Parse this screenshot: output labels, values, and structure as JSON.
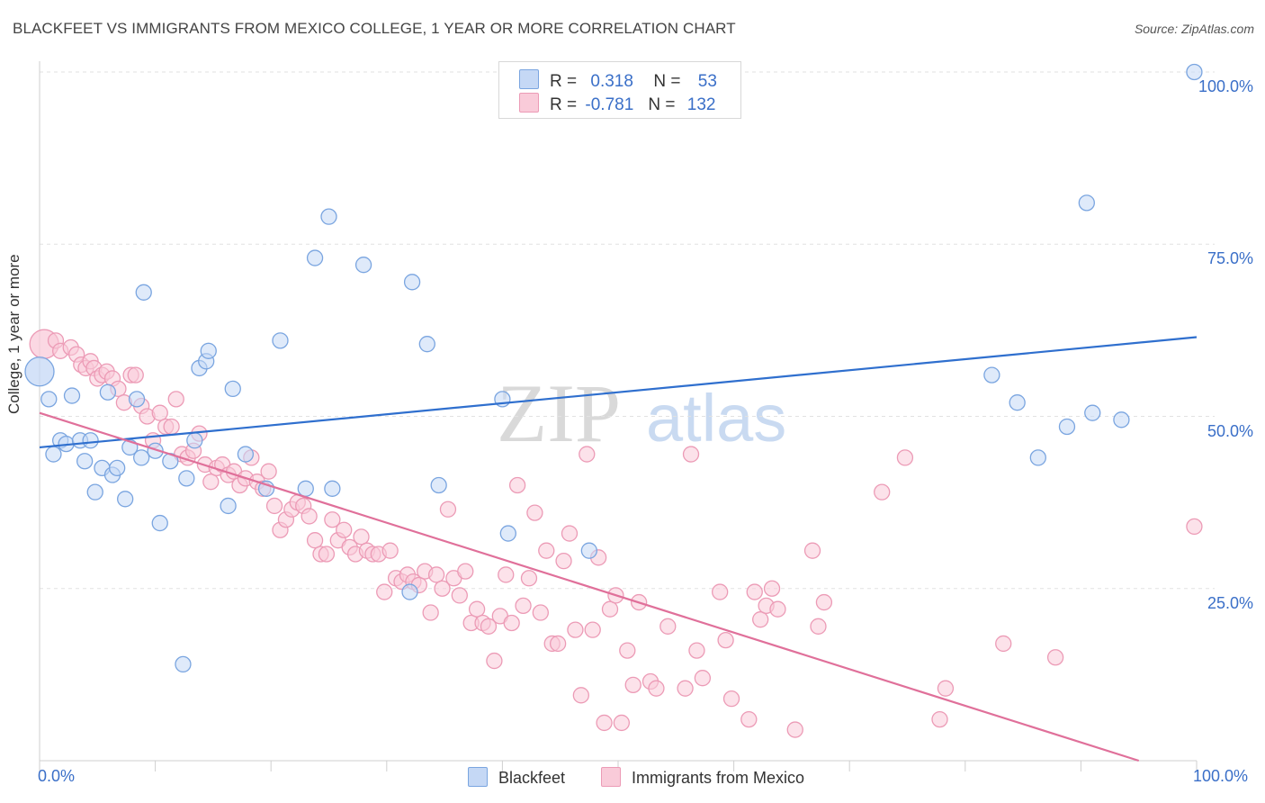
{
  "title": "BLACKFEET VS IMMIGRANTS FROM MEXICO COLLEGE, 1 YEAR OR MORE CORRELATION CHART",
  "source": "Source: ZipAtlas.com",
  "watermark": {
    "zip": "ZIP",
    "atlas": "atlas"
  },
  "legend": {
    "rows": [
      {
        "r_label": "R =",
        "r_value": "0.318",
        "n_label": "N =",
        "n_value": "53"
      },
      {
        "r_label": "R =",
        "r_value": "-0.781",
        "n_label": "N =",
        "n_value": "132"
      }
    ]
  },
  "colors": {
    "blackfeet_fill": "#c5d8f5",
    "blackfeet_stroke": "#7aa5e0",
    "blackfeet_line": "#2f6fce",
    "mexico_fill": "#f9cbd9",
    "mexico_stroke": "#ec9bb6",
    "mexico_line": "#e0709a",
    "tick_text": "#3a6fc8",
    "grid": "#e2e2e2"
  },
  "chart_data": {
    "type": "scatter",
    "xlabel": "",
    "ylabel": "College, 1 year or more",
    "xlim": [
      0,
      100
    ],
    "ylim": [
      0,
      100
    ],
    "x_tick_labels": [
      "0.0%",
      "100.0%"
    ],
    "y_tick_labels": [
      "25.0%",
      "50.0%",
      "75.0%",
      "100.0%"
    ],
    "y_ticks": [
      25,
      50,
      75,
      100
    ],
    "grid": "horizontal dashed",
    "legend_placement": "top-center",
    "series": [
      {
        "name": "Blackfeet",
        "trend": {
          "x": [
            0,
            100
          ],
          "y": [
            45.5,
            61.5
          ]
        },
        "points": [
          {
            "x": 0.0,
            "y": 56.5,
            "big": true
          },
          {
            "x": 0.8,
            "y": 52.5
          },
          {
            "x": 1.2,
            "y": 44.5
          },
          {
            "x": 1.8,
            "y": 46.5
          },
          {
            "x": 2.3,
            "y": 46.0
          },
          {
            "x": 2.8,
            "y": 53.0
          },
          {
            "x": 3.5,
            "y": 46.5
          },
          {
            "x": 3.9,
            "y": 43.5
          },
          {
            "x": 4.4,
            "y": 46.5
          },
          {
            "x": 4.8,
            "y": 39.0
          },
          {
            "x": 5.4,
            "y": 42.5
          },
          {
            "x": 5.9,
            "y": 53.5
          },
          {
            "x": 6.3,
            "y": 41.5
          },
          {
            "x": 6.7,
            "y": 42.5
          },
          {
            "x": 7.4,
            "y": 38.0
          },
          {
            "x": 7.8,
            "y": 45.5
          },
          {
            "x": 8.4,
            "y": 52.5
          },
          {
            "x": 8.8,
            "y": 44.0
          },
          {
            "x": 9.0,
            "y": 68.0
          },
          {
            "x": 10.0,
            "y": 45.0
          },
          {
            "x": 10.4,
            "y": 34.5
          },
          {
            "x": 11.3,
            "y": 43.5
          },
          {
            "x": 12.4,
            "y": 14.0
          },
          {
            "x": 12.7,
            "y": 41.0
          },
          {
            "x": 13.4,
            "y": 46.5
          },
          {
            "x": 13.8,
            "y": 57.0
          },
          {
            "x": 14.4,
            "y": 58.0
          },
          {
            "x": 14.6,
            "y": 59.5
          },
          {
            "x": 16.3,
            "y": 37.0
          },
          {
            "x": 16.7,
            "y": 54.0
          },
          {
            "x": 17.8,
            "y": 44.5
          },
          {
            "x": 19.6,
            "y": 39.5
          },
          {
            "x": 20.8,
            "y": 61.0
          },
          {
            "x": 23.0,
            "y": 39.5
          },
          {
            "x": 23.8,
            "y": 73.0
          },
          {
            "x": 25.0,
            "y": 79.0
          },
          {
            "x": 25.3,
            "y": 39.5
          },
          {
            "x": 28.0,
            "y": 72.0
          },
          {
            "x": 32.0,
            "y": 24.5
          },
          {
            "x": 32.2,
            "y": 69.5
          },
          {
            "x": 33.5,
            "y": 60.5
          },
          {
            "x": 34.5,
            "y": 40.0
          },
          {
            "x": 40.0,
            "y": 52.5
          },
          {
            "x": 40.5,
            "y": 33.0
          },
          {
            "x": 47.5,
            "y": 30.5
          },
          {
            "x": 82.3,
            "y": 56.0
          },
          {
            "x": 84.5,
            "y": 52.0
          },
          {
            "x": 86.3,
            "y": 44.0
          },
          {
            "x": 88.8,
            "y": 48.5
          },
          {
            "x": 90.5,
            "y": 81.0
          },
          {
            "x": 91.0,
            "y": 50.5
          },
          {
            "x": 93.5,
            "y": 49.5
          },
          {
            "x": 99.8,
            "y": 100.0
          }
        ]
      },
      {
        "name": "Immigrants from Mexico",
        "trend": {
          "x": [
            0,
            95
          ],
          "y": [
            50.5,
            0
          ]
        },
        "points": [
          {
            "x": 0.4,
            "y": 60.5,
            "big": true
          },
          {
            "x": 1.4,
            "y": 61.0
          },
          {
            "x": 1.8,
            "y": 59.5
          },
          {
            "x": 2.7,
            "y": 60.0
          },
          {
            "x": 3.2,
            "y": 59.0
          },
          {
            "x": 3.6,
            "y": 57.5
          },
          {
            "x": 4.0,
            "y": 57.0
          },
          {
            "x": 4.4,
            "y": 58.0
          },
          {
            "x": 4.7,
            "y": 57.0
          },
          {
            "x": 5.0,
            "y": 55.5
          },
          {
            "x": 5.4,
            "y": 56.0
          },
          {
            "x": 5.8,
            "y": 56.5
          },
          {
            "x": 6.3,
            "y": 55.5
          },
          {
            "x": 6.8,
            "y": 54.0
          },
          {
            "x": 7.3,
            "y": 52.0
          },
          {
            "x": 7.9,
            "y": 56.0
          },
          {
            "x": 8.3,
            "y": 56.0
          },
          {
            "x": 8.8,
            "y": 51.5
          },
          {
            "x": 9.3,
            "y": 50.0
          },
          {
            "x": 9.8,
            "y": 46.5
          },
          {
            "x": 10.4,
            "y": 50.5
          },
          {
            "x": 10.9,
            "y": 48.5
          },
          {
            "x": 11.4,
            "y": 48.5
          },
          {
            "x": 11.8,
            "y": 52.5
          },
          {
            "x": 12.3,
            "y": 44.5
          },
          {
            "x": 12.8,
            "y": 44.0
          },
          {
            "x": 13.3,
            "y": 45.0
          },
          {
            "x": 13.8,
            "y": 47.5
          },
          {
            "x": 14.3,
            "y": 43.0
          },
          {
            "x": 14.8,
            "y": 40.5
          },
          {
            "x": 15.3,
            "y": 42.5
          },
          {
            "x": 15.8,
            "y": 43.0
          },
          {
            "x": 16.3,
            "y": 41.5
          },
          {
            "x": 16.8,
            "y": 42.0
          },
          {
            "x": 17.3,
            "y": 40.0
          },
          {
            "x": 17.8,
            "y": 41.0
          },
          {
            "x": 18.3,
            "y": 44.0
          },
          {
            "x": 18.8,
            "y": 40.5
          },
          {
            "x": 19.3,
            "y": 39.5
          },
          {
            "x": 19.8,
            "y": 42.0
          },
          {
            "x": 20.3,
            "y": 37.0
          },
          {
            "x": 20.8,
            "y": 33.5
          },
          {
            "x": 21.3,
            "y": 35.0
          },
          {
            "x": 21.8,
            "y": 36.5
          },
          {
            "x": 22.3,
            "y": 37.5
          },
          {
            "x": 22.8,
            "y": 37.0
          },
          {
            "x": 23.3,
            "y": 35.5
          },
          {
            "x": 23.8,
            "y": 32.0
          },
          {
            "x": 24.3,
            "y": 30.0
          },
          {
            "x": 24.8,
            "y": 30.0
          },
          {
            "x": 25.3,
            "y": 35.0
          },
          {
            "x": 25.8,
            "y": 32.0
          },
          {
            "x": 26.3,
            "y": 33.5
          },
          {
            "x": 26.8,
            "y": 31.0
          },
          {
            "x": 27.3,
            "y": 30.0
          },
          {
            "x": 27.8,
            "y": 32.5
          },
          {
            "x": 28.3,
            "y": 30.5
          },
          {
            "x": 28.8,
            "y": 30.0
          },
          {
            "x": 29.3,
            "y": 30.0
          },
          {
            "x": 29.8,
            "y": 24.5
          },
          {
            "x": 30.3,
            "y": 30.5
          },
          {
            "x": 30.8,
            "y": 26.5
          },
          {
            "x": 31.3,
            "y": 26.0
          },
          {
            "x": 31.8,
            "y": 27.0
          },
          {
            "x": 32.3,
            "y": 26.0
          },
          {
            "x": 32.8,
            "y": 25.5
          },
          {
            "x": 33.3,
            "y": 27.5
          },
          {
            "x": 33.8,
            "y": 21.5
          },
          {
            "x": 34.3,
            "y": 27.0
          },
          {
            "x": 34.8,
            "y": 25.0
          },
          {
            "x": 35.3,
            "y": 36.5
          },
          {
            "x": 35.8,
            "y": 26.5
          },
          {
            "x": 36.3,
            "y": 24.0
          },
          {
            "x": 36.8,
            "y": 27.5
          },
          {
            "x": 37.3,
            "y": 20.0
          },
          {
            "x": 37.8,
            "y": 22.0
          },
          {
            "x": 38.3,
            "y": 20.0
          },
          {
            "x": 38.8,
            "y": 19.5
          },
          {
            "x": 39.3,
            "y": 14.5
          },
          {
            "x": 39.8,
            "y": 21.0
          },
          {
            "x": 40.3,
            "y": 27.0
          },
          {
            "x": 40.8,
            "y": 20.0
          },
          {
            "x": 41.3,
            "y": 40.0
          },
          {
            "x": 41.8,
            "y": 22.5
          },
          {
            "x": 42.3,
            "y": 26.5
          },
          {
            "x": 42.8,
            "y": 36.0
          },
          {
            "x": 43.3,
            "y": 21.5
          },
          {
            "x": 43.8,
            "y": 30.5
          },
          {
            "x": 44.3,
            "y": 17.0
          },
          {
            "x": 44.8,
            "y": 17.0
          },
          {
            "x": 45.3,
            "y": 29.0
          },
          {
            "x": 45.8,
            "y": 33.0
          },
          {
            "x": 46.3,
            "y": 19.0
          },
          {
            "x": 46.8,
            "y": 9.5
          },
          {
            "x": 47.3,
            "y": 44.5
          },
          {
            "x": 47.8,
            "y": 19.0
          },
          {
            "x": 48.3,
            "y": 29.5
          },
          {
            "x": 48.8,
            "y": 5.5
          },
          {
            "x": 49.3,
            "y": 22.0
          },
          {
            "x": 49.8,
            "y": 24.0
          },
          {
            "x": 50.3,
            "y": 5.5
          },
          {
            "x": 50.8,
            "y": 16.0
          },
          {
            "x": 51.3,
            "y": 11.0
          },
          {
            "x": 51.8,
            "y": 23.0
          },
          {
            "x": 52.8,
            "y": 11.5
          },
          {
            "x": 53.3,
            "y": 10.5
          },
          {
            "x": 54.3,
            "y": 19.5
          },
          {
            "x": 55.8,
            "y": 10.5
          },
          {
            "x": 56.3,
            "y": 44.5
          },
          {
            "x": 56.8,
            "y": 16.0
          },
          {
            "x": 57.3,
            "y": 12.0
          },
          {
            "x": 58.8,
            "y": 24.5
          },
          {
            "x": 59.3,
            "y": 17.5
          },
          {
            "x": 59.8,
            "y": 9.0
          },
          {
            "x": 61.3,
            "y": 6.0
          },
          {
            "x": 61.8,
            "y": 24.5
          },
          {
            "x": 62.3,
            "y": 20.5
          },
          {
            "x": 62.8,
            "y": 22.5
          },
          {
            "x": 63.3,
            "y": 25.0
          },
          {
            "x": 63.8,
            "y": 22.0
          },
          {
            "x": 65.3,
            "y": 4.5
          },
          {
            "x": 66.8,
            "y": 30.5
          },
          {
            "x": 67.3,
            "y": 19.5
          },
          {
            "x": 67.8,
            "y": 23.0
          },
          {
            "x": 72.8,
            "y": 39.0
          },
          {
            "x": 74.8,
            "y": 44.0
          },
          {
            "x": 77.8,
            "y": 6.0
          },
          {
            "x": 78.3,
            "y": 10.5
          },
          {
            "x": 83.3,
            "y": 17.0
          },
          {
            "x": 87.8,
            "y": 15.0
          },
          {
            "x": 99.8,
            "y": 34.0
          }
        ]
      }
    ]
  },
  "bottom_legend": [
    {
      "label": "Blackfeet"
    },
    {
      "label": "Immigrants from Mexico"
    }
  ]
}
